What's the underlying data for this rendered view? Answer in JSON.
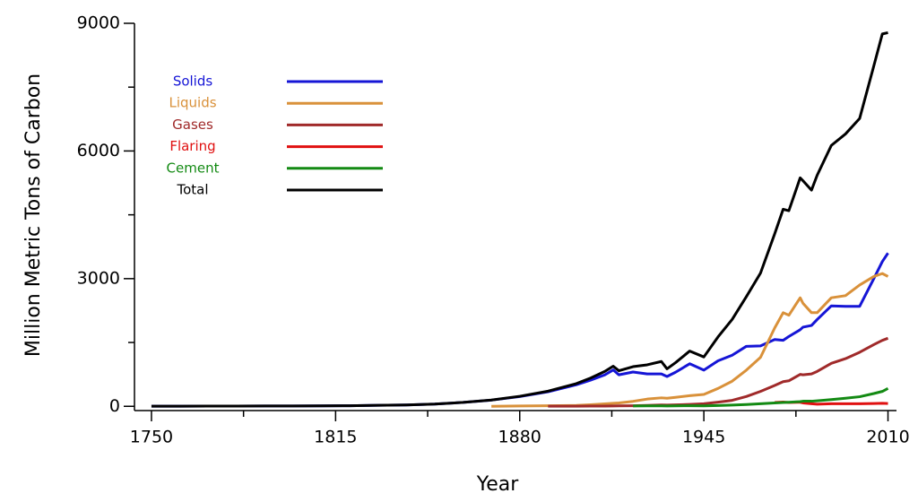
{
  "chart_data": {
    "type": "line",
    "xlabel": "Year",
    "ylabel": "Million Metric Tons of Carbon",
    "xlim": [
      1744,
      2013
    ],
    "ylim": [
      -100,
      9000
    ],
    "xticks": [
      1750,
      1815,
      1880,
      1945,
      2010
    ],
    "xminor_ticks": [
      1782.5,
      1847.5,
      1912.5,
      1977.5
    ],
    "yticks": [
      0,
      3000,
      6000,
      9000
    ],
    "yminor_ticks": [
      1500,
      4500,
      7500
    ],
    "grid": false,
    "legend": "upper left",
    "x": [
      1750,
      1760,
      1770,
      1780,
      1790,
      1800,
      1810,
      1820,
      1830,
      1840,
      1850,
      1860,
      1870,
      1880,
      1890,
      1900,
      1905,
      1910,
      1913,
      1915,
      1920,
      1925,
      1930,
      1932,
      1935,
      1940,
      1945,
      1950,
      1955,
      1960,
      1965,
      1970,
      1973,
      1975,
      1979,
      1980,
      1983,
      1985,
      1990,
      1995,
      2000,
      2005,
      2008,
      2010
    ],
    "series": [
      {
        "name": "Solids",
        "color": "#1515d6",
        "values": [
          3,
          3,
          4,
          5,
          7,
          8,
          10,
          14,
          24,
          33,
          54,
          91,
          146,
          228,
          341,
          507,
          615,
          737,
          855,
          740,
          806,
          760,
          760,
          700,
          800,
          1000,
          850,
          1070,
          1200,
          1410,
          1420,
          1570,
          1550,
          1640,
          1800,
          1860,
          1900,
          2040,
          2360,
          2350,
          2350,
          3000,
          3400,
          3600
        ]
      },
      {
        "name": "Liquids",
        "color": "#d9913a",
        "values": [
          null,
          null,
          null,
          null,
          null,
          null,
          null,
          null,
          null,
          null,
          null,
          null,
          1,
          8,
          12,
          22,
          36,
          57,
          70,
          80,
          117,
          170,
          199,
          190,
          210,
          250,
          280,
          420,
          590,
          850,
          1150,
          1840,
          2200,
          2140,
          2550,
          2420,
          2200,
          2200,
          2550,
          2600,
          2850,
          3050,
          3120,
          3050
        ]
      },
      {
        "name": "Gases",
        "color": "#a02a2a",
        "values": [
          null,
          null,
          null,
          null,
          null,
          null,
          null,
          null,
          null,
          null,
          null,
          null,
          null,
          null,
          3,
          2,
          4,
          6,
          9,
          10,
          13,
          20,
          33,
          30,
          35,
          44,
          60,
          97,
          140,
          230,
          350,
          490,
          580,
          600,
          750,
          740,
          760,
          820,
          1010,
          1120,
          1270,
          1450,
          1550,
          1600
        ]
      },
      {
        "name": "Flaring",
        "color": "#e01010",
        "values": [
          null,
          null,
          null,
          null,
          null,
          null,
          null,
          null,
          null,
          null,
          null,
          null,
          null,
          null,
          null,
          null,
          null,
          null,
          null,
          null,
          null,
          null,
          null,
          null,
          null,
          null,
          null,
          null,
          null,
          null,
          null,
          90,
          100,
          90,
          95,
          80,
          60,
          50,
          60,
          60,
          60,
          65,
          70,
          66
        ]
      },
      {
        "name": "Cement",
        "color": "#138a13",
        "values": [
          null,
          null,
          null,
          null,
          null,
          null,
          null,
          null,
          null,
          null,
          null,
          null,
          null,
          null,
          null,
          null,
          null,
          null,
          null,
          null,
          7,
          10,
          10,
          8,
          11,
          14,
          10,
          18,
          30,
          43,
          60,
          78,
          90,
          95,
          110,
          120,
          120,
          130,
          157,
          190,
          225,
          300,
          350,
          420
        ]
      },
      {
        "name": "Total",
        "color": "#000000",
        "values": [
          3,
          3,
          4,
          5,
          7,
          8,
          10,
          14,
          24,
          33,
          54,
          91,
          147,
          236,
          356,
          534,
          663,
          819,
          943,
          836,
          932,
          975,
          1053,
          881,
          1025,
          1299,
          1160,
          1630,
          2043,
          2577,
          3130,
          4053,
          4631,
          4596,
          5369,
          5300,
          5080,
          5430,
          6130,
          6400,
          6765,
          8000,
          8750,
          8780
        ]
      }
    ]
  }
}
